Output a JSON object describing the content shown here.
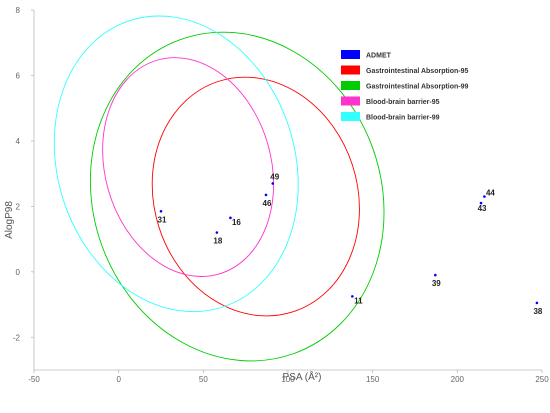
{
  "chart_data": {
    "type": "scatter",
    "xlabel": "PSA (Å²)",
    "ylabel": "AlogP98",
    "xlim": [
      -50,
      250
    ],
    "ylim": [
      -3,
      8
    ],
    "xticks": [
      "-50",
      "0",
      "50",
      "100",
      "150",
      "200",
      "250"
    ],
    "yticks": [
      "-2",
      "0",
      "2",
      "4",
      "6",
      "8"
    ],
    "grid": false,
    "legend": "top-right",
    "points": [
      {
        "label": "31",
        "x": 25,
        "y": 1.85
      },
      {
        "label": "18",
        "x": 58,
        "y": 1.2
      },
      {
        "label": "16",
        "x": 66,
        "y": 1.65
      },
      {
        "label": "46",
        "x": 87,
        "y": 2.35
      },
      {
        "label": "49",
        "x": 91,
        "y": 2.7
      },
      {
        "label": "11",
        "x": 138,
        "y": -0.75
      },
      {
        "label": "39",
        "x": 187,
        "y": -0.1
      },
      {
        "label": "43",
        "x": 214,
        "y": 2.1
      },
      {
        "label": "44",
        "x": 216,
        "y": 2.3
      },
      {
        "label": "38",
        "x": 247,
        "y": -0.95
      }
    ],
    "series": [
      {
        "name": "ADMET",
        "color": "#0000ff"
      },
      {
        "name": "Gastrointestinal Absorption-95",
        "color": "#ff0000",
        "ellipse": {
          "cx": 81,
          "cy": 2.3,
          "rx": 60,
          "ry": 3.7,
          "rotate": -18
        }
      },
      {
        "name": "Gastrointestinal Absorption-99",
        "color": "#00cc00",
        "ellipse": {
          "cx": 70,
          "cy": 2.3,
          "rx": 85,
          "ry": 5.1,
          "rotate": -20
        }
      },
      {
        "name": "Blood-brain barrier-95",
        "color": "#ff33cc",
        "ellipse": {
          "cx": 41,
          "cy": 3.2,
          "rx": 49,
          "ry": 3.4,
          "rotate": -16
        }
      },
      {
        "name": "Blood-brain barrier-99",
        "color": "#33ffff",
        "ellipse": {
          "cx": 34,
          "cy": 3.3,
          "rx": 70,
          "ry": 4.6,
          "rotate": -18
        }
      }
    ]
  }
}
